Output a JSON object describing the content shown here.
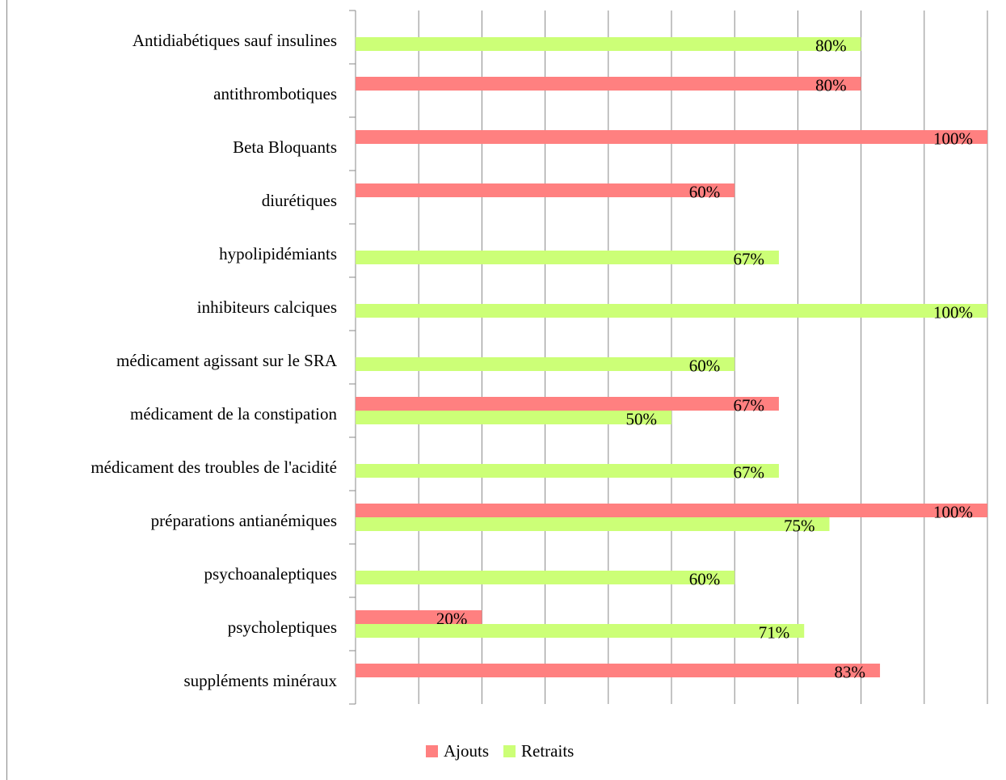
{
  "chart_data": {
    "type": "bar",
    "orientation": "horizontal",
    "categories": [
      "Antidiabétiques sauf insulines",
      "antithrombotiques",
      "Beta Bloquants",
      "diurétiques",
      "hypolipidémiants",
      "inhibiteurs calciques",
      "médicament agissant sur le SRA",
      "médicament de la constipation",
      "médicament des troubles de l'acidité",
      "préparations antianémiques",
      "psychoanaleptiques",
      "psycholeptiques",
      "suppléments minéraux"
    ],
    "series": [
      {
        "name": "Ajouts",
        "color": "#ff8080",
        "values": [
          null,
          80,
          100,
          60,
          null,
          null,
          null,
          67,
          null,
          100,
          null,
          20,
          83
        ],
        "value_labels": [
          null,
          "80%",
          "100%",
          "60%",
          null,
          null,
          null,
          "67%",
          null,
          "100%",
          null,
          "20%",
          "83%"
        ]
      },
      {
        "name": "Retraits",
        "color": "#ccff77",
        "values": [
          80,
          null,
          null,
          null,
          67,
          100,
          60,
          50,
          67,
          75,
          60,
          71,
          null
        ],
        "value_labels": [
          "80%",
          null,
          null,
          null,
          "67%",
          "100%",
          "60%",
          "50%",
          "67%",
          "75%",
          "60%",
          "71%",
          null
        ]
      }
    ],
    "xlim": [
      0,
      100
    ],
    "xticks": [
      0,
      10,
      20,
      30,
      40,
      50,
      60,
      70,
      80,
      90,
      100
    ],
    "grid": true,
    "legend": "bottom"
  }
}
